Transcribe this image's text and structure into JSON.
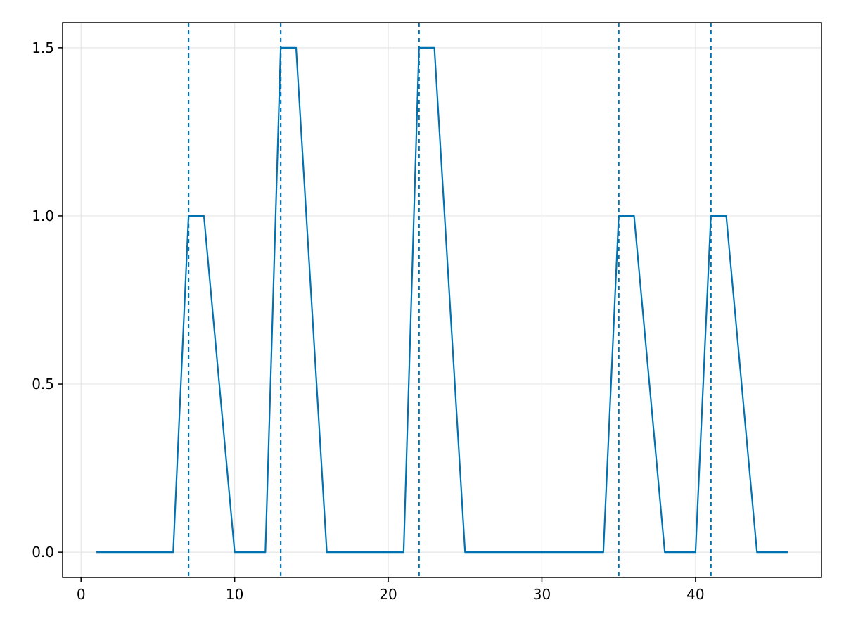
{
  "chart_data": {
    "type": "line",
    "title": "",
    "xlabel": "",
    "ylabel": "",
    "xlim": [
      -1.2,
      48.2
    ],
    "ylim": [
      -0.075,
      1.575
    ],
    "x_ticks": [
      0,
      10,
      20,
      30,
      40
    ],
    "y_ticks": [
      0.0,
      0.5,
      1.0,
      1.5
    ],
    "x_tick_labels": [
      "0",
      "10",
      "20",
      "30",
      "40"
    ],
    "y_tick_labels": [
      "0.0",
      "0.5",
      "1.0",
      "1.5"
    ],
    "grid": true,
    "series": [
      {
        "color": "#0072b2",
        "x": [
          1,
          2,
          3,
          4,
          5,
          6,
          7,
          8,
          9,
          10,
          11,
          12,
          13,
          14,
          15,
          16,
          17,
          18,
          19,
          20,
          21,
          22,
          23,
          24,
          25,
          26,
          27,
          28,
          29,
          30,
          31,
          32,
          33,
          34,
          35,
          36,
          37,
          38,
          39,
          40,
          41,
          42,
          43,
          44,
          45,
          46
        ],
        "y": [
          0,
          0,
          0,
          0,
          0,
          0,
          1,
          1,
          0.5,
          0,
          0,
          0,
          1.5,
          1.5,
          0.75,
          0,
          0,
          0,
          0,
          0,
          0,
          1.5,
          1.5,
          0.75,
          0,
          0,
          0,
          0,
          0,
          0,
          0,
          0,
          0,
          0,
          1,
          1,
          0.5,
          0,
          0,
          0,
          1,
          1,
          0.5,
          0,
          0,
          0
        ]
      }
    ],
    "vlines": {
      "color": "#0072b2",
      "style": "dashed",
      "x": [
        7,
        13,
        22,
        35,
        41
      ]
    }
  }
}
